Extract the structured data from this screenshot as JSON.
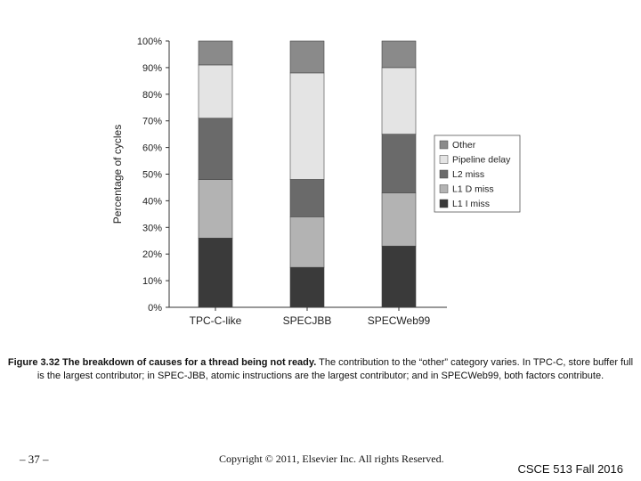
{
  "chart_data": {
    "type": "bar",
    "stacked": true,
    "categories": [
      "TPC-C-like",
      "SPECJBB",
      "SPECWeb99"
    ],
    "series": [
      {
        "name": "L1 I miss",
        "color": "#3a3a3a",
        "values": [
          26,
          15,
          23
        ]
      },
      {
        "name": "L1 D miss",
        "color": "#b3b3b3",
        "values": [
          22,
          19,
          20
        ]
      },
      {
        "name": "L2 miss",
        "color": "#6a6a6a",
        "values": [
          23,
          14,
          22
        ]
      },
      {
        "name": "Pipeline delay",
        "color": "#e4e4e4",
        "values": [
          20,
          40,
          25
        ]
      },
      {
        "name": "Other",
        "color": "#8a8a8a",
        "values": [
          9,
          12,
          10
        ]
      }
    ],
    "legend_order": [
      "Other",
      "Pipeline delay",
      "L2 miss",
      "L1 D miss",
      "L1 I miss"
    ],
    "ylabel": "Percentage of cycles",
    "xlabel": "",
    "ylim": [
      0,
      100
    ],
    "yticks": [
      0,
      10,
      20,
      30,
      40,
      50,
      60,
      70,
      80,
      90,
      100
    ],
    "ytick_suffix": "%",
    "legend_position": "right"
  },
  "caption": {
    "bold": "Figure 3.32 The breakdown of causes for a thread being not ready.",
    "text": " The contribution to the “other” category varies. In TPC-C, store buffer full is the largest contributor; in SPEC-JBB, atomic instructions are the largest contributor; and in SPECWeb99, both factors contribute."
  },
  "footer": {
    "page_number": "– 37 –",
    "copyright": "Copyright © 2011, Elsevier Inc. All rights Reserved.",
    "course": "CSCE 513 Fall 2016"
  }
}
